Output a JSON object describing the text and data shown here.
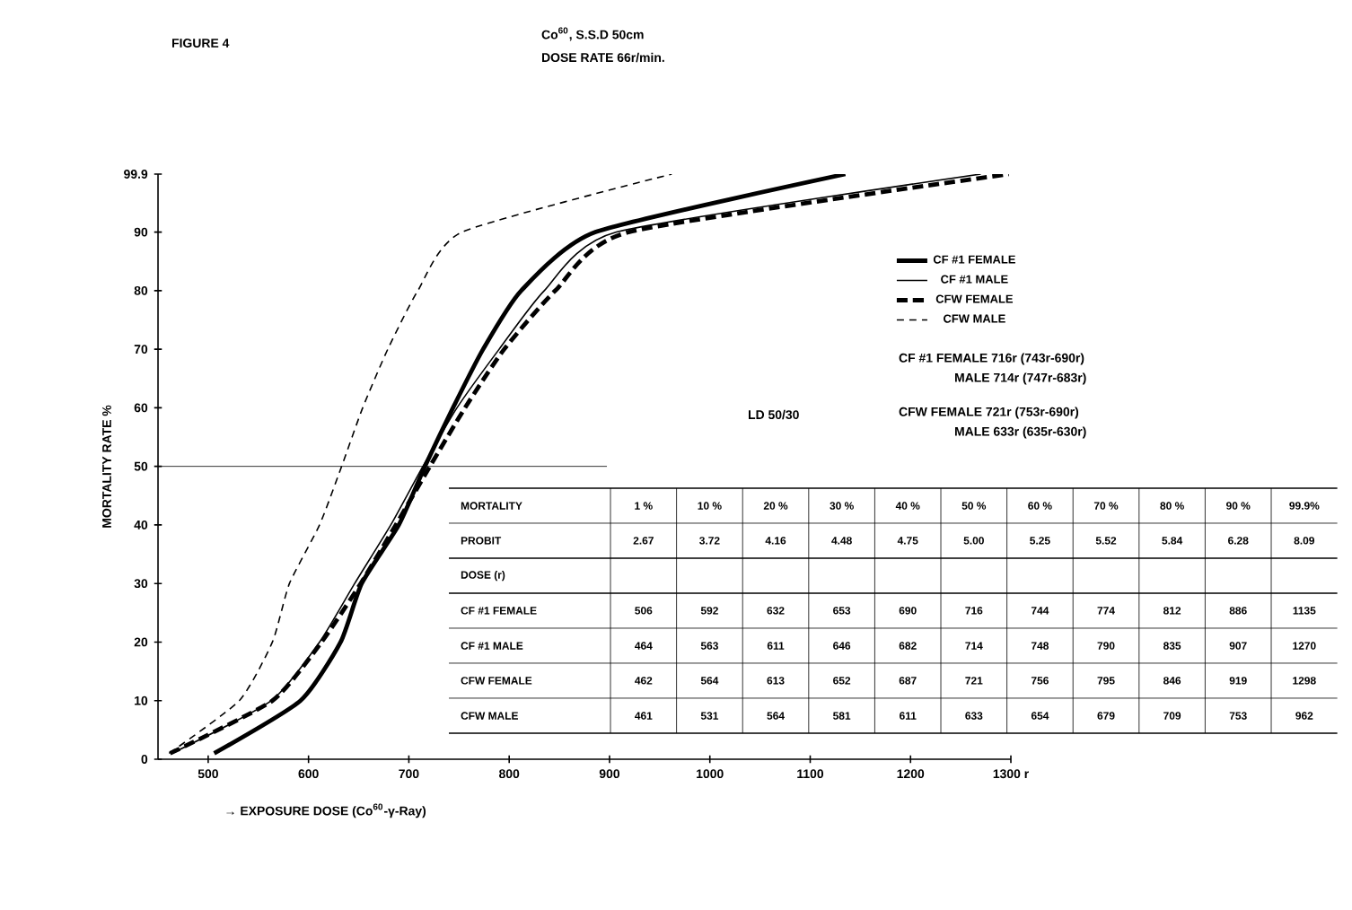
{
  "chart_data": [
    {
      "type": "line",
      "title": "FIGURE 4",
      "subtitle": "Co$^{60}$, S.S.D 50cm",
      "xlabel": "→ EXPOSURE DOSE (Co$^{60}$-γ-Ray)",
      "ylabel": "MORTALITY RATE %",
      "xlim": [
        450,
        1300
      ],
      "ylim": [
        0,
        99.9
      ],
      "xticks": [
        500,
        600,
        700,
        800,
        900,
        1000,
        1100,
        1200,
        {
          "value": 1300,
          "label": "1300 r"
        }
      ],
      "yticks": [
        0,
        10,
        20,
        30,
        40,
        50,
        60,
        70,
        80,
        90,
        99.9
      ],
      "legend": "top right",
      "ref_lines": [
        {
          "axis": "y",
          "value": 50
        }
      ],
      "series": [
        {
          "name": "CF #1 FEMALE",
          "color": "#000000",
          "line_style": "solid",
          "x": [
            506,
            592,
            632,
            653,
            690,
            716,
            744,
            774,
            812,
            886,
            1135
          ],
          "values": [
            1,
            10,
            20,
            30,
            40,
            50,
            60,
            70,
            80,
            90,
            99.9
          ]
        },
        {
          "name": "CF #1 MALE",
          "color": "#000000",
          "line_style": "solid",
          "x": [
            464,
            563,
            611,
            646,
            682,
            714,
            748,
            790,
            835,
            907,
            1270
          ],
          "values": [
            1,
            10,
            20,
            30,
            40,
            50,
            60,
            70,
            80,
            90,
            99.9
          ]
        },
        {
          "name": "CFW FEMALE",
          "color": "#000000",
          "line_style": "dashed",
          "x": [
            462,
            564,
            613,
            652,
            687,
            721,
            756,
            795,
            846,
            919,
            1298
          ],
          "values": [
            1,
            10,
            20,
            30,
            40,
            50,
            60,
            70,
            80,
            90,
            99.9
          ]
        },
        {
          "name": "CFW MALE",
          "color": "#000000",
          "line_style": "dashed",
          "x": [
            461,
            531,
            564,
            581,
            611,
            633,
            654,
            679,
            709,
            753,
            962
          ],
          "values": [
            1,
            10,
            20,
            30,
            40,
            50,
            60,
            70,
            80,
            90,
            99.9
          ]
        }
      ],
      "annotations": [
        "DOSE RATE  66r/min.",
        "LD 50/30",
        "CF #1 FEMALE 716r (743r-690r)",
        "MALE 714r (747r-683r)",
        "CFW FEMALE 721r (753r-690r)",
        "MALE 633r (635r-630r)"
      ]
    },
    {
      "type": "other",
      "annotations": [
        "MORTALITY",
        "1 %",
        "10 %",
        "20 %",
        "30 %",
        "40 %",
        "50 %",
        "60 %",
        "70 %",
        "80 %",
        "90 %",
        "99.9%",
        "PROBIT",
        "2.67",
        "3.72",
        "4.16",
        "4.48",
        "4.75",
        "5.00",
        "5.25",
        "5.52",
        "5.84",
        "6.28",
        "8.09",
        "DOSE (r)",
        "CF #1 FEMALE",
        "506",
        "592",
        "632",
        "653",
        "690",
        "716",
        "744",
        "774",
        "812",
        "886",
        "1135",
        "CF #1 MALE",
        "464",
        "563",
        "611",
        "646",
        "682",
        "714",
        "748",
        "790",
        "835",
        "907",
        "1270",
        "CFW FEMALE",
        "462",
        "564",
        "613",
        "652",
        "687",
        "721",
        "756",
        "795",
        "846",
        "919",
        "1298",
        "CFW MALE",
        "461",
        "531",
        "564",
        "581",
        "611",
        "633",
        "654",
        "679",
        "709",
        "753",
        "962"
      ]
    }
  ]
}
